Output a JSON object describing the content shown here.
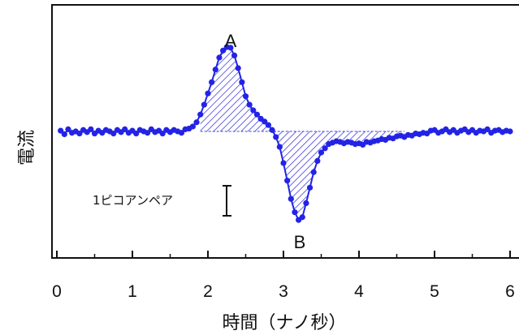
{
  "chart_data": {
    "type": "scatter",
    "xlabel": "時間（ナノ秒）",
    "ylabel": "電流",
    "xlim": [
      0,
      6
    ],
    "ylim": [
      -1.8,
      1.8
    ],
    "xticks": [
      "0",
      "1",
      "2",
      "3",
      "4",
      "5",
      "6"
    ],
    "grid": false,
    "legend": "none",
    "colors": {
      "series": "#2323e6",
      "hatch": "#4040e0",
      "axis": "#111111"
    },
    "annotations": [
      {
        "text": "A",
        "x": 2.3,
        "y": 1.22
      },
      {
        "text": "B",
        "x": 3.2,
        "y": -1.32
      }
    ],
    "scale_bar": {
      "label": "1ピコアンペア",
      "magnitude": 1,
      "unit": "pA"
    },
    "series": [
      {
        "x": [
          0.05,
          0.1,
          0.15,
          0.2,
          0.25,
          0.3,
          0.35,
          0.4,
          0.45,
          0.5,
          0.55,
          0.6,
          0.65,
          0.7,
          0.75,
          0.8,
          0.85,
          0.9,
          0.95,
          1.0,
          1.05,
          1.1,
          1.15,
          1.2,
          1.25,
          1.3,
          1.35,
          1.4,
          1.45,
          1.5,
          1.55,
          1.6,
          1.65,
          1.7,
          1.75,
          1.8,
          1.85,
          1.9,
          1.95,
          2.0,
          2.05,
          2.1,
          2.15,
          2.2,
          2.25,
          2.3,
          2.35,
          2.4,
          2.45,
          2.5,
          2.55,
          2.6,
          2.65,
          2.7,
          2.75,
          2.8,
          2.85,
          2.9,
          2.95,
          3.0,
          3.05,
          3.1,
          3.15,
          3.2,
          3.25,
          3.3,
          3.35,
          3.4,
          3.45,
          3.5,
          3.55,
          3.6,
          3.65,
          3.7,
          3.75,
          3.8,
          3.85,
          3.9,
          3.95,
          4.0,
          4.05,
          4.1,
          4.15,
          4.2,
          4.25,
          4.3,
          4.35,
          4.4,
          4.45,
          4.5,
          4.55,
          4.6,
          4.65,
          4.7,
          4.75,
          4.8,
          4.85,
          4.9,
          4.95,
          5.0,
          5.05,
          5.1,
          5.15,
          5.2,
          5.25,
          5.3,
          5.35,
          5.4,
          5.45,
          5.5,
          5.55,
          5.6,
          5.65,
          5.7,
          5.75,
          5.8,
          5.85,
          5.9,
          5.95,
          6.0
        ],
        "y": [
          0.01,
          -0.04,
          0.03,
          -0.02,
          0.0,
          -0.03,
          0.02,
          -0.01,
          0.03,
          -0.03,
          0.01,
          -0.02,
          0.02,
          0.0,
          -0.03,
          0.02,
          -0.01,
          0.03,
          -0.02,
          0.01,
          -0.03,
          0.02,
          0.0,
          -0.02,
          0.03,
          -0.01,
          0.01,
          -0.03,
          0.02,
          -0.01,
          0.02,
          0.0,
          -0.02,
          0.03,
          0.04,
          0.07,
          0.13,
          0.24,
          0.38,
          0.54,
          0.7,
          0.88,
          1.05,
          1.15,
          1.2,
          1.19,
          1.08,
          0.9,
          0.7,
          0.5,
          0.38,
          0.3,
          0.24,
          0.18,
          0.14,
          0.09,
          0.02,
          -0.08,
          -0.22,
          -0.45,
          -0.7,
          -0.96,
          -1.15,
          -1.26,
          -1.22,
          -1.02,
          -0.8,
          -0.58,
          -0.42,
          -0.3,
          -0.24,
          -0.18,
          -0.16,
          -0.14,
          -0.15,
          -0.17,
          -0.15,
          -0.16,
          -0.18,
          -0.17,
          -0.19,
          -0.15,
          -0.16,
          -0.14,
          -0.13,
          -0.11,
          -0.12,
          -0.09,
          -0.1,
          -0.07,
          -0.06,
          -0.08,
          -0.05,
          -0.06,
          -0.03,
          -0.04,
          -0.02,
          -0.03,
          0.01,
          0.02,
          -0.02,
          0.0,
          0.03,
          -0.01,
          0.02,
          -0.02,
          0.01,
          0.03,
          -0.01,
          0.02,
          -0.02,
          0.01,
          0.0,
          0.03,
          -0.02,
          0.01,
          0.02,
          -0.01,
          0.01,
          0.0
        ]
      }
    ]
  }
}
